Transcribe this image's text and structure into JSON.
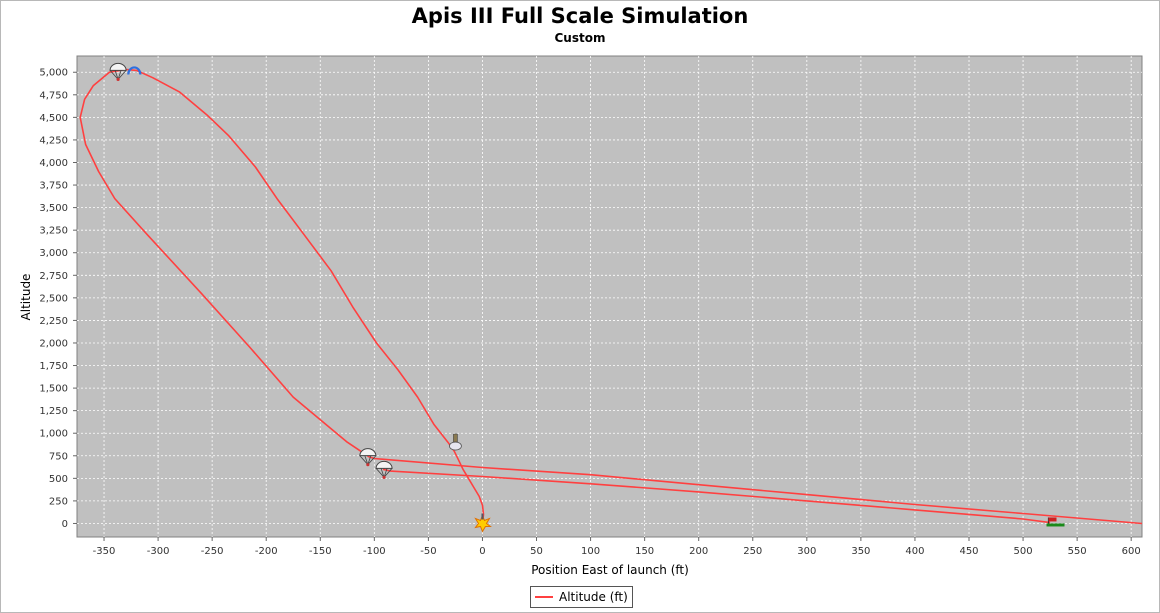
{
  "chart_data": {
    "type": "line",
    "title": "Apis III Full Scale Simulation",
    "subtitle": "Custom",
    "xlabel": "Position East of launch (ft)",
    "ylabel": "Altitude",
    "xlim": [
      -375,
      610
    ],
    "ylim": [
      -150,
      5180
    ],
    "x_ticks": [
      -350,
      -300,
      -250,
      -200,
      -150,
      -100,
      -50,
      0,
      50,
      100,
      150,
      200,
      250,
      300,
      350,
      400,
      450,
      500,
      550,
      600
    ],
    "y_ticks": [
      0,
      250,
      500,
      750,
      1000,
      1250,
      1500,
      1750,
      2000,
      2250,
      2500,
      2750,
      3000,
      3250,
      3500,
      3750,
      4000,
      4250,
      4500,
      4750,
      5000
    ],
    "x_tick_labels": [
      "-350",
      "-300",
      "-250",
      "-200",
      "-150",
      "-100",
      "-50",
      "0",
      "50",
      "100",
      "150",
      "200",
      "250",
      "300",
      "350",
      "400",
      "450",
      "500",
      "550",
      "600"
    ],
    "y_tick_labels": [
      "0",
      "250",
      "500",
      "750",
      "1,000",
      "1,250",
      "1,500",
      "1,750",
      "2,000",
      "2,250",
      "2,500",
      "2,750",
      "3,000",
      "3,250",
      "3,500",
      "3,750",
      "4,000",
      "4,250",
      "4,500",
      "4,750",
      "5,000"
    ],
    "grid": true,
    "legend_position": "bottom-center",
    "plot_background": "#c0c0c0",
    "series": [
      {
        "name": "Altitude (ft)",
        "color": "#ff4040",
        "points": [
          [
            0,
            0
          ],
          [
            1,
            100
          ],
          [
            0,
            200
          ],
          [
            -3,
            300
          ],
          [
            -8,
            400
          ],
          [
            -13,
            500
          ],
          [
            -18,
            600
          ],
          [
            -22,
            700
          ],
          [
            -26,
            800
          ],
          [
            -32,
            900
          ],
          [
            -45,
            1100
          ],
          [
            -60,
            1400
          ],
          [
            -78,
            1700
          ],
          [
            -98,
            2000
          ],
          [
            -120,
            2400
          ],
          [
            -140,
            2800
          ],
          [
            -165,
            3200
          ],
          [
            -190,
            3600
          ],
          [
            -210,
            3950
          ],
          [
            -235,
            4300
          ],
          [
            -255,
            4530
          ],
          [
            -280,
            4780
          ],
          [
            -305,
            4940
          ],
          [
            -320,
            5020
          ],
          [
            -330,
            5030
          ],
          [
            -345,
            5000
          ],
          [
            -360,
            4850
          ],
          [
            -368,
            4700
          ],
          [
            -372,
            4500
          ],
          [
            -367,
            4200
          ],
          [
            -355,
            3900
          ],
          [
            -340,
            3600
          ],
          [
            -310,
            3200
          ],
          [
            -260,
            2550
          ],
          [
            -215,
            1950
          ],
          [
            -175,
            1400
          ],
          [
            -145,
            1100
          ],
          [
            -125,
            900
          ],
          [
            -110,
            780
          ],
          [
            -105,
            740
          ],
          [
            -100,
            720
          ],
          [
            0,
            620
          ],
          [
            100,
            540
          ],
          [
            200,
            430
          ],
          [
            300,
            320
          ],
          [
            400,
            210
          ],
          [
            500,
            110
          ],
          [
            610,
            0
          ]
        ],
        "second_drift": [
          [
            -92,
            600
          ],
          [
            -85,
            580
          ],
          [
            0,
            520
          ],
          [
            100,
            440
          ],
          [
            200,
            350
          ],
          [
            300,
            250
          ],
          [
            400,
            150
          ],
          [
            500,
            50
          ],
          [
            525,
            10
          ]
        ]
      }
    ],
    "events": [
      {
        "name": "launch",
        "x": 0,
        "y": 0,
        "icon": "launch-star-icon"
      },
      {
        "name": "burnout",
        "x": -25,
        "y": 880,
        "icon": "rocket-icon"
      },
      {
        "name": "apogee",
        "x": -322,
        "y": 5020,
        "icon": "apogee-arc-icon"
      },
      {
        "name": "drogue-deploy",
        "x": -337,
        "y": 5010,
        "icon": "parachute-icon"
      },
      {
        "name": "main-deploy-1",
        "x": -106,
        "y": 740,
        "icon": "parachute-icon"
      },
      {
        "name": "main-deploy-2",
        "x": -91,
        "y": 600,
        "icon": "parachute-icon"
      },
      {
        "name": "ground-hit",
        "x": 530,
        "y": 0,
        "icon": "ground-hit-flag-icon"
      }
    ]
  }
}
